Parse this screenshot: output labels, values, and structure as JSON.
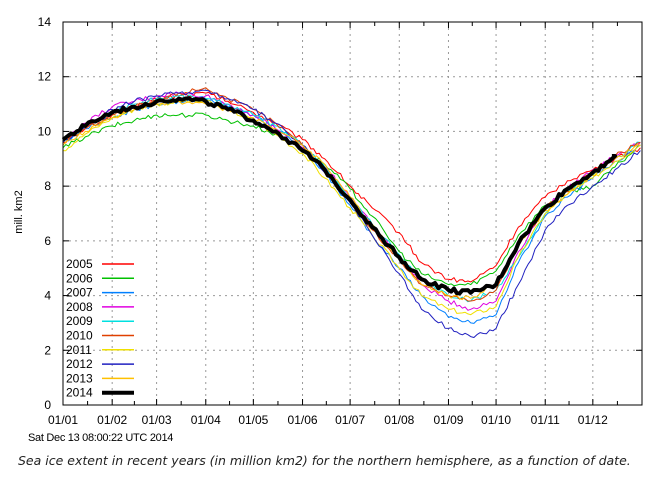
{
  "figure": {
    "timestamp": "Sat Dec 13 08:00:22 UTC 2014",
    "caption": "Sea ice extent in recent years (in million km2) for the northern hemisphere, as a function of date."
  },
  "chart_data": {
    "type": "line",
    "title": "",
    "xlabel": "",
    "ylabel": "mill. km2",
    "ylim": [
      0,
      14
    ],
    "yticks": [
      0,
      2,
      4,
      6,
      8,
      10,
      12,
      14
    ],
    "xlim_day_of_year": [
      1,
      366
    ],
    "xtick_labels": [
      "01/01",
      "01/02",
      "01/03",
      "01/04",
      "01/05",
      "01/06",
      "01/07",
      "01/08",
      "01/09",
      "01/10",
      "01/11",
      "01/12"
    ],
    "grid": true,
    "legend_position": "bottom-left",
    "x_day_of_year": [
      1,
      15,
      32,
      46,
      60,
      74,
      91,
      105,
      121,
      135,
      152,
      166,
      182,
      196,
      213,
      227,
      244,
      258,
      274,
      288,
      305,
      319,
      335,
      349,
      365
    ],
    "series": [
      {
        "name": "2005",
        "color": "#ff0000",
        "width": 1,
        "values": [
          9.6,
          10.1,
          10.6,
          10.9,
          11.2,
          11.3,
          11.4,
          11.1,
          10.7,
          10.3,
          9.7,
          9.0,
          8.0,
          7.2,
          6.3,
          5.2,
          4.6,
          4.5,
          5.1,
          6.5,
          7.6,
          8.2,
          8.6,
          9.0,
          9.4
        ]
      },
      {
        "name": "2006",
        "color": "#00c000",
        "width": 1,
        "values": [
          9.4,
          9.8,
          10.2,
          10.4,
          10.6,
          10.6,
          10.6,
          10.4,
          10.2,
          9.9,
          9.4,
          8.8,
          7.9,
          6.9,
          5.6,
          4.8,
          4.4,
          4.4,
          4.9,
          6.2,
          7.3,
          7.8,
          8.0,
          8.7,
          9.5
        ]
      },
      {
        "name": "2007",
        "color": "#0080ff",
        "width": 1,
        "values": [
          9.6,
          10.1,
          10.5,
          10.8,
          11.0,
          11.1,
          11.2,
          10.9,
          10.6,
          10.1,
          9.4,
          8.5,
          7.3,
          6.2,
          5.0,
          4.0,
          3.2,
          3.0,
          3.3,
          5.2,
          6.9,
          7.6,
          8.3,
          8.9,
          9.5
        ]
      },
      {
        "name": "2008",
        "color": "#e000e0",
        "width": 1,
        "values": [
          9.7,
          10.3,
          10.9,
          11.1,
          11.3,
          11.4,
          11.3,
          11.0,
          10.6,
          10.1,
          9.4,
          8.7,
          7.6,
          6.6,
          5.4,
          4.4,
          3.8,
          3.5,
          3.8,
          5.6,
          7.2,
          7.9,
          8.6,
          9.1,
          9.6
        ]
      },
      {
        "name": "2009",
        "color": "#00e0e0",
        "width": 1,
        "values": [
          9.7,
          10.2,
          10.7,
          11.0,
          11.2,
          11.3,
          11.2,
          11.0,
          10.6,
          10.2,
          9.5,
          8.7,
          7.6,
          6.6,
          5.5,
          4.6,
          4.0,
          3.8,
          4.2,
          5.4,
          7.0,
          7.8,
          8.4,
          9.0,
          9.6
        ]
      },
      {
        "name": "2010",
        "color": "#e04000",
        "width": 1,
        "values": [
          9.6,
          10.1,
          10.6,
          10.9,
          11.1,
          11.4,
          11.6,
          11.2,
          10.8,
          10.3,
          9.5,
          8.6,
          7.4,
          6.4,
          5.3,
          4.4,
          4.0,
          3.8,
          4.2,
          5.8,
          7.2,
          7.8,
          8.5,
          9.1,
          9.6
        ]
      },
      {
        "name": "2011",
        "color": "#f0e000",
        "width": 1,
        "values": [
          9.3,
          9.9,
          10.5,
          10.8,
          11.0,
          11.1,
          11.1,
          10.8,
          10.4,
          9.9,
          9.2,
          8.3,
          7.2,
          6.2,
          5.0,
          4.0,
          3.5,
          3.3,
          3.6,
          5.4,
          7.0,
          7.7,
          8.3,
          8.9,
          9.5
        ]
      },
      {
        "name": "2012",
        "color": "#2020c0",
        "width": 1,
        "values": [
          9.6,
          10.2,
          10.8,
          11.1,
          11.3,
          11.4,
          11.5,
          11.2,
          10.8,
          10.3,
          9.5,
          8.5,
          7.4,
          6.2,
          4.8,
          3.5,
          2.8,
          2.5,
          2.8,
          4.4,
          6.4,
          7.3,
          8.0,
          8.6,
          9.3
        ]
      },
      {
        "name": "2013",
        "color": "#ffc000",
        "width": 1,
        "values": [
          9.5,
          10.0,
          10.5,
          10.8,
          11.0,
          11.1,
          11.0,
          10.8,
          10.5,
          10.1,
          9.5,
          8.8,
          7.6,
          6.6,
          5.4,
          4.4,
          4.0,
          3.9,
          4.4,
          5.9,
          7.1,
          7.7,
          8.4,
          9.0,
          9.5
        ]
      },
      {
        "name": "2014",
        "color": "#000000",
        "width": 4,
        "values": [
          9.7,
          10.2,
          10.7,
          10.9,
          11.1,
          11.2,
          11.1,
          10.8,
          10.4,
          10.0,
          9.3,
          8.6,
          7.5,
          6.5,
          5.4,
          4.6,
          4.2,
          4.1,
          4.4,
          5.9,
          7.2,
          7.9,
          8.5,
          9.1,
          null
        ]
      }
    ]
  }
}
